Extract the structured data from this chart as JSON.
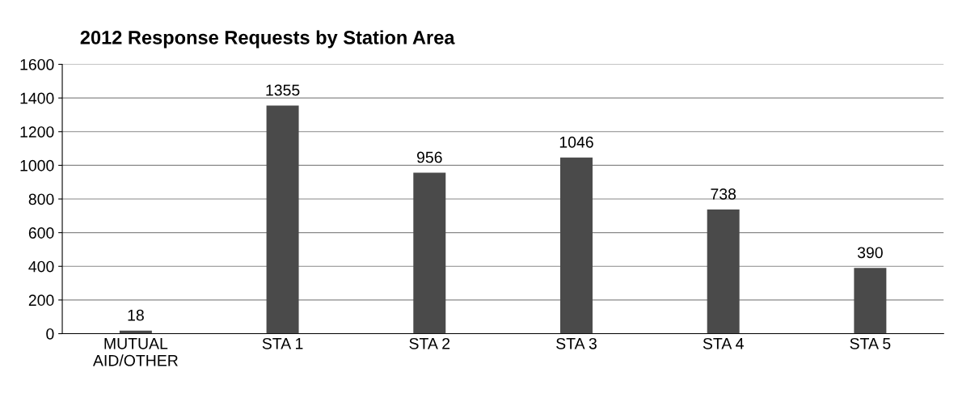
{
  "chart_data": {
    "type": "bar",
    "title": "2012 Response Requests by Station Area",
    "categories": [
      "MUTUAL\nAID/OTHER",
      "STA 1",
      "STA 2",
      "STA 3",
      "STA 4",
      "STA 5"
    ],
    "values": [
      18,
      1355,
      956,
      1046,
      738,
      390
    ],
    "color": "#4a4a4a",
    "ylim": [
      0,
      1600
    ],
    "yticks": [
      0,
      200,
      400,
      600,
      800,
      1000,
      1200,
      1400,
      1600
    ],
    "grid": "y",
    "data_labels": true
  }
}
